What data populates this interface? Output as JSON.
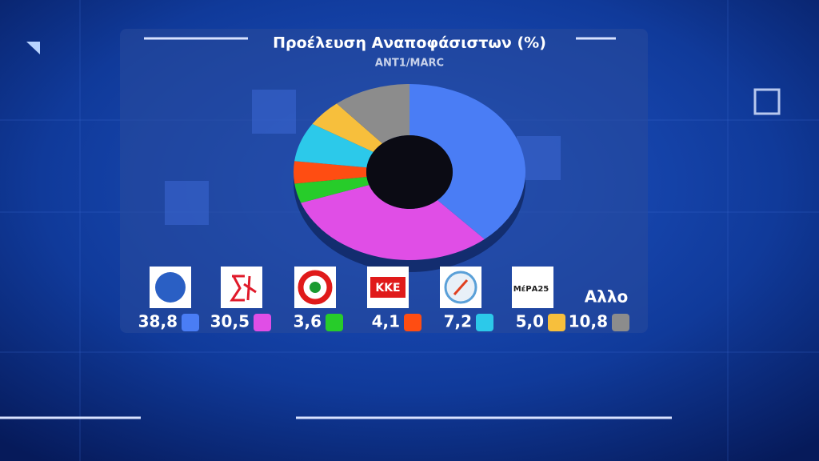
{
  "chart_data": {
    "type": "pie",
    "donut": true,
    "title": "Προέλευση Αναποφάσιστων (%)",
    "subtitle": "ANT1/MARC",
    "categories": [
      null,
      null,
      null,
      null,
      null,
      null,
      "Αλλο"
    ],
    "values": [
      38.8,
      30.5,
      3.6,
      4.1,
      7.2,
      5.0,
      10.8
    ],
    "value_labels": [
      "38,8",
      "30,5",
      "3,6",
      "4,1",
      "7,2",
      "5,0",
      "10,8"
    ],
    "colors": [
      "#4a7df5",
      "#e04ee6",
      "#27cc2a",
      "#ff4d12",
      "#2cc9ea",
      "#f7bf3c",
      "#8c8c8c"
    ]
  },
  "logos": {
    "kke": "ΚΚΕ",
    "mera25": "ΜέΡΑ25"
  }
}
